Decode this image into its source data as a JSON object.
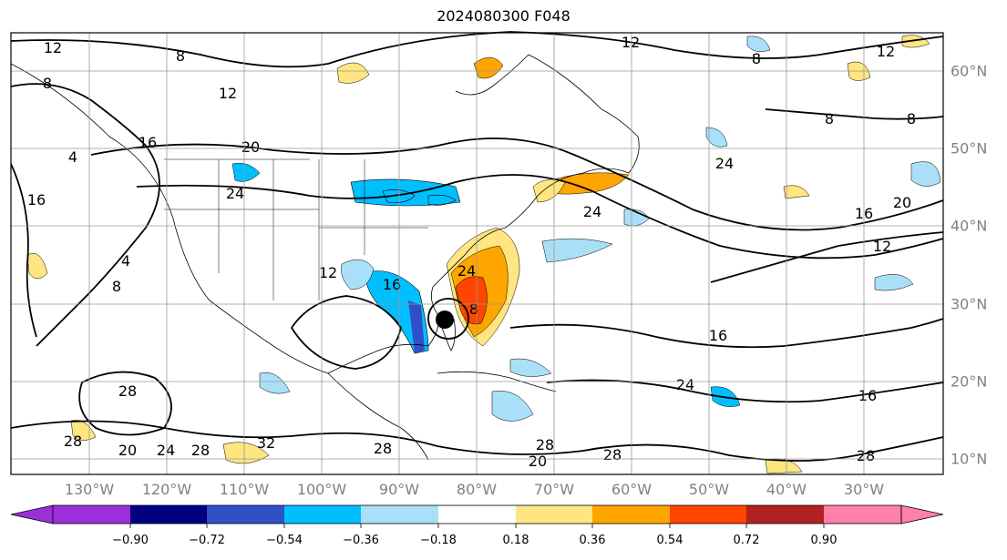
{
  "title": "2024080300 F048",
  "longitude_labels": [
    "130°W",
    "120°W",
    "110°W",
    "100°W",
    "90°W",
    "80°W",
    "70°W",
    "60°W",
    "50°W",
    "40°W",
    "30°W"
  ],
  "latitude_labels": [
    "60°N",
    "50°N",
    "40°N",
    "30°N",
    "20°N",
    "10°N"
  ],
  "colorbar": {
    "ticks": [
      "−0.90",
      "−0.72",
      "−0.54",
      "−0.36",
      "−0.18",
      "0.18",
      "0.36",
      "0.54",
      "0.72",
      "0.90"
    ],
    "colors": [
      "#9b30d9",
      "#000080",
      "#3050c8",
      "#00bfff",
      "#aadff8",
      "#ffffff",
      "#ffe680",
      "#ffa500",
      "#ff4500",
      "#b22222",
      "#ff80a8"
    ]
  },
  "contour_labels": [
    "12",
    "8",
    "12",
    "8",
    "8",
    "8",
    "20",
    "16",
    "24",
    "4",
    "12",
    "8",
    "24",
    "24",
    "16",
    "20",
    "12",
    "16",
    "16",
    "8",
    "12",
    "4",
    "28",
    "24",
    "28",
    "20",
    "24",
    "28",
    "32",
    "28",
    "28",
    "20",
    "28",
    "16",
    "24",
    "16",
    "8",
    "28",
    "12"
  ],
  "colors": {
    "blue_light": "#aadff8",
    "blue": "#00bfff",
    "blue_dark": "#3050c8",
    "yellow": "#ffe680",
    "orange": "#ffa500",
    "red": "#ff4500",
    "grid": "#999999",
    "label": "#808080"
  }
}
